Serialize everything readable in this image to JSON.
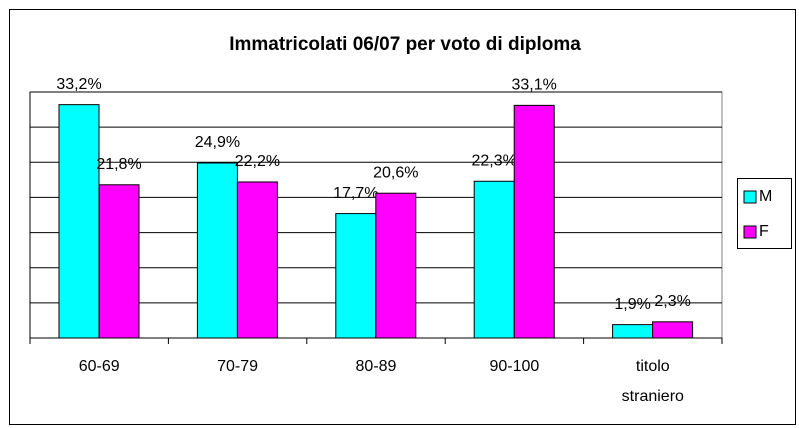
{
  "chart_data": {
    "type": "bar",
    "title": "Immatricolati 06/07 per voto di diploma",
    "categories": [
      "60-69",
      "70-79",
      "80-89",
      "90-100",
      "titolo straniero"
    ],
    "series": [
      {
        "name": "M",
        "color": "#00ffff",
        "values": [
          33.2,
          24.9,
          17.7,
          22.3,
          1.9
        ],
        "value_labels": [
          "33,2%",
          "24,9%",
          "17,7%",
          "22,3%",
          "1,9%"
        ]
      },
      {
        "name": "F",
        "color": "#ff00ff",
        "values": [
          21.8,
          22.2,
          20.6,
          33.1,
          2.3
        ],
        "value_labels": [
          "21,8%",
          "22,2%",
          "20,6%",
          "33,1%",
          "2,3%"
        ]
      }
    ],
    "ylim": [
      0,
      35
    ],
    "yticks": [
      0,
      5,
      10,
      15,
      20,
      25,
      30,
      35
    ],
    "grid": true,
    "legend": "right"
  }
}
